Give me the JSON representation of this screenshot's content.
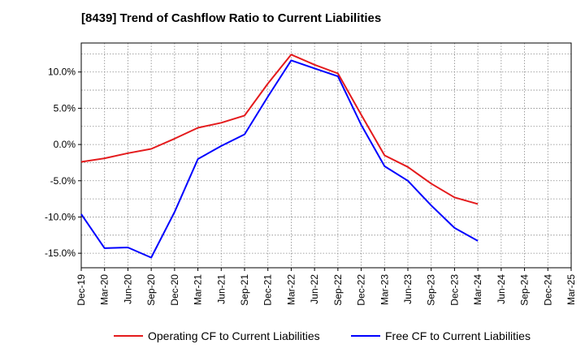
{
  "chart_data": {
    "type": "line",
    "title": "[8439]  Trend of Cashflow Ratio to Current Liabilities",
    "xlabel": "",
    "ylabel": "",
    "categories": [
      "Dec-19",
      "Mar-20",
      "Jun-20",
      "Sep-20",
      "Dec-20",
      "Mar-21",
      "Jun-21",
      "Sep-21",
      "Dec-21",
      "Mar-22",
      "Jun-22",
      "Sep-22",
      "Dec-22",
      "Mar-23",
      "Jun-23",
      "Sep-23",
      "Dec-23",
      "Mar-24",
      "Jun-24",
      "Sep-24",
      "Dec-24",
      "Mar-25"
    ],
    "y_ticks": [
      "10.0%",
      "5.0%",
      "0.0%",
      "-5.0%",
      "-10.0%",
      "-15.0%"
    ],
    "y_tick_values": [
      10,
      5,
      0,
      -5,
      -10,
      -15
    ],
    "ylim": [
      -17,
      14
    ],
    "grid": true,
    "legend_position": "bottom",
    "series": [
      {
        "name": "Operating CF to Current Liabilities",
        "color": "#e41a1c",
        "values": [
          -2.4,
          -1.9,
          -1.2,
          -0.6,
          0.8,
          2.3,
          3.0,
          4.0,
          8.4,
          12.4,
          11.0,
          9.8,
          4.1,
          -1.5,
          -3.1,
          -5.4,
          -7.3,
          -8.2,
          null,
          null,
          null,
          null
        ]
      },
      {
        "name": "Free CF to Current Liabilities",
        "color": "#0000ff",
        "values": [
          -9.6,
          -14.3,
          -14.2,
          -15.6,
          -9.3,
          -2.0,
          -0.2,
          1.4,
          6.6,
          11.6,
          10.5,
          9.4,
          2.7,
          -3.0,
          -5.0,
          -8.4,
          -11.5,
          -13.3,
          null,
          null,
          null,
          null
        ]
      }
    ]
  }
}
